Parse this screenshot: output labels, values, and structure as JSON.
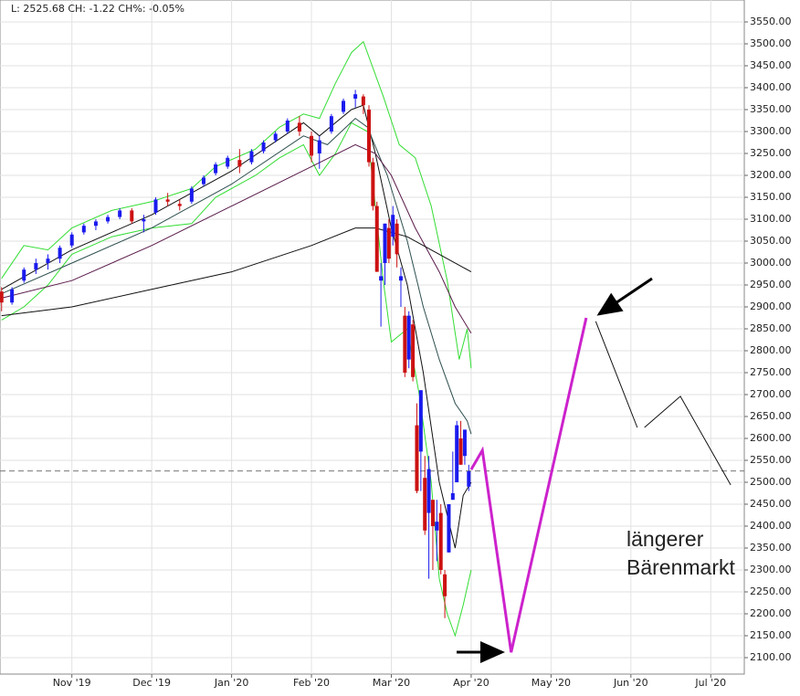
{
  "chart_data": {
    "type": "candlestick",
    "header": "L: 2525.68 CH: -1.22 CH%: -0.05%",
    "annotation": [
      "längerer",
      "Bärenmarkt"
    ],
    "last_price": 2525.68,
    "grid": true,
    "xlim": [
      -0.9,
      8.42
    ],
    "ylim": [
      2062.5,
      3600
    ],
    "xticks": [
      {
        "value": 0,
        "label": "Nov '19"
      },
      {
        "value": 1,
        "label": "Dec '19"
      },
      {
        "value": 2,
        "label": "Jan '20"
      },
      {
        "value": 3,
        "label": "Feb '20"
      },
      {
        "value": 4,
        "label": "Mar '20"
      },
      {
        "value": 5,
        "label": "Apr '20"
      },
      {
        "value": 6,
        "label": "May '20"
      },
      {
        "value": 7,
        "label": "Jun '20"
      },
      {
        "value": 8,
        "label": "Jul '20"
      }
    ],
    "yticks": [
      {
        "value": 2100,
        "label": "2100.00"
      },
      {
        "value": 2150,
        "label": "2150.00"
      },
      {
        "value": 2200,
        "label": "2200.00"
      },
      {
        "value": 2250,
        "label": "2250.00"
      },
      {
        "value": 2300,
        "label": "2300.00"
      },
      {
        "value": 2350,
        "label": "2350.00"
      },
      {
        "value": 2400,
        "label": "2400.00"
      },
      {
        "value": 2450,
        "label": "2450.00"
      },
      {
        "value": 2500,
        "label": "2500.00"
      },
      {
        "value": 2550,
        "label": "2550.00"
      },
      {
        "value": 2600,
        "label": "2600.00"
      },
      {
        "value": 2650,
        "label": "2650.00"
      },
      {
        "value": 2700,
        "label": "2700.00"
      },
      {
        "value": 2750,
        "label": "2750.00"
      },
      {
        "value": 2800,
        "label": "2800.00"
      },
      {
        "value": 2850,
        "label": "2850.00"
      },
      {
        "value": 2900,
        "label": "2900.00"
      },
      {
        "value": 2950,
        "label": "2950.00"
      },
      {
        "value": 3000,
        "label": "3000.00"
      },
      {
        "value": 3050,
        "label": "3050.00"
      },
      {
        "value": 3100,
        "label": "3100.00"
      },
      {
        "value": 3150,
        "label": "3150.00"
      },
      {
        "value": 3200,
        "label": "3200.00"
      },
      {
        "value": 3250,
        "label": "3250.00"
      },
      {
        "value": 3300,
        "label": "3300.00"
      },
      {
        "value": 3350,
        "label": "3350.00"
      },
      {
        "value": 3400,
        "label": "3400.00"
      },
      {
        "value": 3450,
        "label": "3450.00"
      },
      {
        "value": 3500,
        "label": "3500.00"
      },
      {
        "value": 3550,
        "label": "3550.00"
      }
    ],
    "candles": {
      "up_color": "#1a1aee",
      "down_color": "#cc1111",
      "x": [
        -0.88,
        -0.75,
        -0.6,
        -0.45,
        -0.3,
        -0.15,
        0,
        0.15,
        0.3,
        0.45,
        0.6,
        0.75,
        0.9,
        1.05,
        1.2,
        1.35,
        1.5,
        1.65,
        1.8,
        1.95,
        2.1,
        2.25,
        2.4,
        2.55,
        2.7,
        2.85,
        3.0,
        3.1,
        3.25,
        3.4,
        3.55,
        3.65,
        3.72,
        3.77,
        3.82,
        3.87,
        3.92,
        3.97,
        4.02,
        4.07,
        4.12,
        4.17,
        4.22,
        4.27,
        4.32,
        4.37,
        4.42,
        4.47,
        4.52,
        4.57,
        4.62,
        4.67,
        4.72,
        4.77,
        4.82,
        4.87,
        4.92,
        4.97
      ],
      "open": [
        2935,
        2910,
        2960,
        2985,
        3000,
        3010,
        3040,
        3070,
        3085,
        3095,
        3105,
        3120,
        3095,
        3115,
        3145,
        3135,
        3140,
        3180,
        3205,
        3220,
        3235,
        3230,
        3255,
        3280,
        3300,
        3320,
        3290,
        3250,
        3300,
        3345,
        3375,
        3380,
        3350,
        3230,
        3130,
        2960,
        3000,
        3080,
        3060,
        3090,
        2960,
        2880,
        2780,
        2860,
        2630,
        2570,
        2510,
        2430,
        2460,
        2390,
        2430,
        2290,
        2340,
        2460,
        2500,
        2600,
        2560,
        2490
      ],
      "high": [
        2945,
        2945,
        2990,
        3010,
        3020,
        3040,
        3070,
        3090,
        3100,
        3110,
        3125,
        3125,
        3110,
        3150,
        3160,
        3145,
        3175,
        3200,
        3230,
        3245,
        3260,
        3260,
        3280,
        3300,
        3330,
        3335,
        3300,
        3290,
        3340,
        3375,
        3395,
        3385,
        3360,
        3240,
        3140,
        3000,
        3090,
        3100,
        3130,
        3100,
        2990,
        2900,
        2890,
        2870,
        2680,
        2710,
        2560,
        2560,
        2460,
        2460,
        2450,
        2300,
        2450,
        2570,
        2640,
        2640,
        2620,
        2540
      ],
      "low": [
        2890,
        2905,
        2955,
        2975,
        2985,
        3000,
        3035,
        3065,
        3075,
        3090,
        3100,
        3090,
        3070,
        3110,
        3130,
        3120,
        3135,
        3175,
        3200,
        3215,
        3205,
        3225,
        3250,
        3275,
        3295,
        3290,
        3230,
        3215,
        3295,
        3340,
        3355,
        3340,
        3220,
        3120,
        2980,
        2855,
        2950,
        3000,
        3040,
        2990,
        2900,
        2740,
        2760,
        2730,
        2475,
        2480,
        2380,
        2280,
        2300,
        2320,
        2290,
        2190,
        2340,
        2460,
        2500,
        2540,
        2540,
        2480
      ],
      "close": [
        2910,
        2940,
        2985,
        3000,
        3010,
        3035,
        3065,
        3085,
        3095,
        3105,
        3120,
        3095,
        3100,
        3145,
        3140,
        3130,
        3170,
        3195,
        3225,
        3240,
        3220,
        3255,
        3275,
        3295,
        3325,
        3300,
        3245,
        3280,
        3335,
        3370,
        3385,
        3360,
        3230,
        3130,
        2980,
        2970,
        3090,
        3010,
        3110,
        3020,
        2970,
        2750,
        2880,
        2740,
        2480,
        2710,
        2390,
        2530,
        2400,
        2410,
        2300,
        2240,
        2450,
        2475,
        2630,
        2540,
        2620,
        2525
      ]
    },
    "lines": [
      {
        "color": "#33dd33",
        "width": 1,
        "x": [
          -0.88,
          -0.6,
          -0.3,
          0,
          0.5,
          1.0,
          1.5,
          1.8,
          2.3,
          2.6,
          2.9,
          3.1,
          3.3,
          3.5,
          3.65,
          3.9,
          4.1,
          4.3,
          4.5,
          4.7,
          4.85,
          4.95,
          5.0
        ],
        "values": [
          2965,
          3040,
          3030,
          3080,
          3120,
          3140,
          3170,
          3220,
          3260,
          3310,
          3340,
          3330,
          3410,
          3480,
          3505,
          3380,
          3270,
          3240,
          3130,
          2960,
          2780,
          2850,
          2760
        ]
      },
      {
        "color": "#33dd33",
        "width": 1,
        "x": [
          -0.88,
          -0.6,
          -0.3,
          0,
          0.5,
          1.0,
          1.5,
          1.8,
          2.3,
          2.6,
          2.9,
          3.1,
          3.3,
          3.5,
          3.7,
          3.9,
          4.0,
          4.2,
          4.35,
          4.5,
          4.6,
          4.7,
          4.8,
          4.9,
          5.0
        ],
        "values": [
          2870,
          2900,
          2950,
          3020,
          3060,
          3080,
          3090,
          3150,
          3200,
          3240,
          3270,
          3200,
          3250,
          3320,
          3300,
          2960,
          2820,
          2850,
          2700,
          2500,
          2280,
          2200,
          2150,
          2220,
          2300
        ]
      },
      {
        "color": "#111111",
        "width": 1,
        "x": [
          -0.88,
          0,
          1,
          2,
          2.9,
          3.1,
          3.5,
          3.65,
          3.8,
          4.0,
          4.2,
          4.4,
          4.6,
          4.8,
          4.9,
          5.0
        ],
        "values": [
          2940,
          3030,
          3110,
          3210,
          3320,
          3290,
          3350,
          3360,
          3250,
          3080,
          2950,
          2750,
          2500,
          2350,
          2470,
          2500
        ]
      },
      {
        "color": "#2f4f4f",
        "width": 1,
        "x": [
          -0.88,
          0,
          1,
          2,
          2.9,
          3.2,
          3.55,
          3.7,
          3.95,
          4.2,
          4.4,
          4.6,
          4.8,
          4.95,
          5.0
        ],
        "values": [
          2930,
          3000,
          3080,
          3180,
          3290,
          3270,
          3330,
          3310,
          3200,
          3050,
          2900,
          2780,
          2680,
          2640,
          2610
        ]
      },
      {
        "color": "#5a1a4a",
        "width": 1,
        "x": [
          -0.88,
          0,
          1,
          2,
          3,
          3.55,
          3.8,
          4.0,
          4.3,
          4.6,
          4.8,
          5.0
        ],
        "values": [
          2920,
          2960,
          3040,
          3130,
          3220,
          3270,
          3250,
          3200,
          3080,
          2980,
          2900,
          2840
        ]
      },
      {
        "color": "#111111",
        "width": 1,
        "x": [
          -0.88,
          0,
          1,
          2,
          3,
          3.55,
          3.8,
          4.2,
          4.6,
          5.0
        ],
        "values": [
          2880,
          2900,
          2940,
          2980,
          3040,
          3080,
          3080,
          3060,
          3020,
          2980
        ]
      },
      {
        "color": "#cc22cc",
        "width": 3,
        "x": [
          5.0,
          5.14,
          5.5,
          6.44
        ],
        "values": [
          2529,
          2573,
          2112,
          2875
        ]
      },
      {
        "color": "#111111",
        "width": 1,
        "x": [
          6.56,
          7.08,
          null,
          7.17,
          7.62,
          8.25
        ],
        "values": [
          2867,
          2625,
          null,
          2625,
          2696,
          2494
        ]
      }
    ]
  }
}
